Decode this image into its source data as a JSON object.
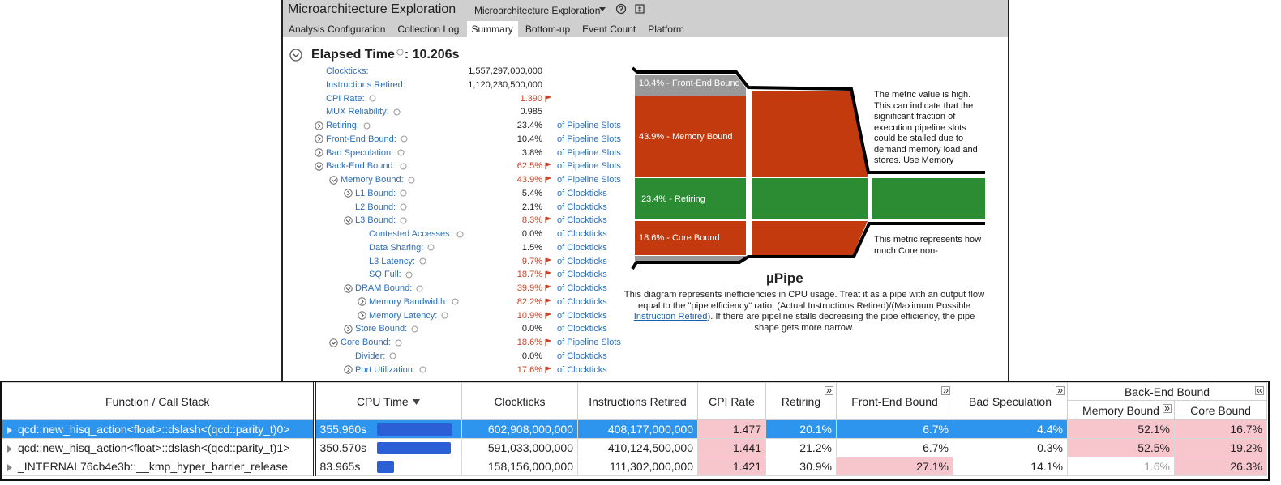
{
  "header": {
    "title": "Microarchitecture Exploration",
    "dropdown": "Microarchitecture Exploration"
  },
  "tabs": [
    "Analysis Configuration",
    "Collection Log",
    "Summary",
    "Bottom-up",
    "Event Count",
    "Platform"
  ],
  "active_tab": "Summary",
  "summary": {
    "elapsed_label": "Elapsed Time",
    "elapsed_value": ": 10.206s",
    "metrics": [
      {
        "name": "Clockticks:",
        "value": "1,557,297,000,000",
        "level": 0
      },
      {
        "name": "Instructions Retired:",
        "value": "1,120,230,500,000",
        "level": 0
      },
      {
        "name": "CPI Rate:",
        "value": "1.390",
        "level": 0,
        "help": true,
        "flagged": true
      },
      {
        "name": "MUX Reliability:",
        "value": "0.985",
        "level": 0,
        "help": true
      },
      {
        "name": "Retiring:",
        "value": "23.4%",
        "unit": "of Pipeline Slots",
        "level": 0,
        "help": true,
        "toggle": "expand"
      },
      {
        "name": "Front-End Bound:",
        "value": "10.4%",
        "unit": "of Pipeline Slots",
        "level": 0,
        "help": true,
        "toggle": "expand"
      },
      {
        "name": "Bad Speculation:",
        "value": "3.8%",
        "unit": "of Pipeline Slots",
        "level": 0,
        "help": true,
        "toggle": "expand"
      },
      {
        "name": "Back-End Bound:",
        "value": "62.5%",
        "unit": "of Pipeline Slots",
        "level": 0,
        "help": true,
        "toggle": "collapse",
        "flagged": true
      },
      {
        "name": "Memory Bound:",
        "value": "43.9%",
        "unit": "of Pipeline Slots",
        "level": 1,
        "help": true,
        "toggle": "collapse",
        "flagged": true
      },
      {
        "name": "L1 Bound:",
        "value": "5.4%",
        "unit": "of Clockticks",
        "level": 2,
        "help": true,
        "toggle": "expand"
      },
      {
        "name": "L2 Bound:",
        "value": "2.1%",
        "unit": "of Clockticks",
        "level": 2,
        "help": true
      },
      {
        "name": "L3 Bound:",
        "value": "8.3%",
        "unit": "of Clockticks",
        "level": 2,
        "help": true,
        "toggle": "collapse",
        "flagged": true
      },
      {
        "name": "Contested Accesses:",
        "value": "0.0%",
        "unit": "of Clockticks",
        "level": 3,
        "help": true
      },
      {
        "name": "Data Sharing:",
        "value": "1.5%",
        "unit": "of Clockticks",
        "level": 3,
        "help": true
      },
      {
        "name": "L3 Latency:",
        "value": "9.7%",
        "unit": "of Clockticks",
        "level": 3,
        "help": true,
        "flagged": true
      },
      {
        "name": "SQ Full:",
        "value": "18.7%",
        "unit": "of Clockticks",
        "level": 3,
        "help": true,
        "flagged": true
      },
      {
        "name": "DRAM Bound:",
        "value": "39.9%",
        "unit": "of Clockticks",
        "level": 2,
        "help": true,
        "toggle": "collapse",
        "flagged": true
      },
      {
        "name": "Memory Bandwidth:",
        "value": "82.2%",
        "unit": "of Clockticks",
        "level": 3,
        "help": true,
        "toggle": "expand",
        "flagged": true
      },
      {
        "name": "Memory Latency:",
        "value": "10.9%",
        "unit": "of Clockticks",
        "level": 3,
        "help": true,
        "toggle": "expand",
        "flagged": true
      },
      {
        "name": "Store Bound:",
        "value": "0.0%",
        "unit": "of Clockticks",
        "level": 2,
        "help": true,
        "toggle": "expand"
      },
      {
        "name": "Core Bound:",
        "value": "18.6%",
        "unit": "of Pipeline Slots",
        "level": 1,
        "help": true,
        "toggle": "collapse",
        "flagged": true
      },
      {
        "name": "Divider:",
        "value": "0.0%",
        "unit": "of Clockticks",
        "level": 2,
        "help": true
      },
      {
        "name": "Port Utilization:",
        "value": "17.6%",
        "unit": "of Clockticks",
        "level": 2,
        "help": true,
        "toggle": "expand",
        "flagged": true
      }
    ]
  },
  "pipe": {
    "front_end": "10.4% - Front-End Bound",
    "memory": "43.9% - Memory Bound",
    "retiring": "23.4% - Retiring",
    "core": "18.6% - Core Bound",
    "tooltip_1": "The metric value is high. This can indicate that the significant fraction of execution pipeline slots could be stalled due to demand memory load and stores. Use Memory",
    "tooltip_2": "This metric represents how much Core non-",
    "title": "µPipe",
    "description_before": "This diagram represents inefficiencies in CPU usage. Treat it as a pipe with an output flow equal to the \"pipe efficiency\" ratio: (Actual Instructions Retired)/(Maximum Possible ",
    "description_link": "Instruction Retired",
    "description_after": "). If there are pipeline stalls decreasing the pipe efficiency, the pipe shape gets more narrow."
  },
  "table": {
    "columns": [
      "Function / Call Stack",
      "CPU Time",
      "Clockticks",
      "Instructions Retired",
      "CPI Rate",
      "Retiring",
      "Front-End Bound",
      "Bad Speculation"
    ],
    "sort_column": "CPU Time",
    "group": {
      "name": "Back-End Bound",
      "columns": [
        "Memory Bound",
        "Core Bound"
      ]
    },
    "rows": [
      {
        "selected": true,
        "cells": [
          "qcd::new_hisq_action<float>::dslash<(qcd::parity_t)0>",
          "355.960s",
          "602,908,000,000",
          "408,177,000,000",
          {
            "text": "1.477",
            "flag": true
          },
          "20.1%",
          "6.7%",
          "4.4%",
          {
            "text": "52.1%",
            "flag": true
          },
          {
            "text": "16.7%",
            "flag": true
          }
        ]
      },
      {
        "cells": [
          "qcd::new_hisq_action<float>::dslash<(qcd::parity_t)1>",
          "350.570s",
          "591,033,000,000",
          "410,124,500,000",
          {
            "text": "1.441",
            "flag": true
          },
          "21.2%",
          "6.7%",
          "0.3%",
          {
            "text": "52.5%",
            "flag": true
          },
          {
            "text": "19.2%",
            "flag": true
          }
        ]
      },
      {
        "cells": [
          "_INTERNAL76cb4e3b::__kmp_hyper_barrier_release",
          "83.965s",
          "158,156,000,000",
          "111,302,000,000",
          {
            "text": "1.421",
            "flag": true
          },
          "30.9%",
          {
            "text": "27.1%",
            "flag": true
          },
          "14.1%",
          {
            "text": "1.6%",
            "muted": true
          },
          {
            "text": "26.3%",
            "flag": true
          }
        ]
      }
    ]
  }
}
